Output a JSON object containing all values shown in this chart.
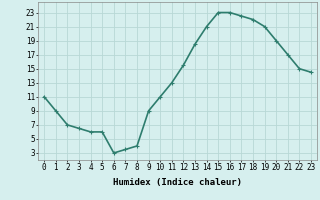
{
  "x": [
    0,
    1,
    2,
    3,
    4,
    5,
    6,
    7,
    8,
    9,
    10,
    11,
    12,
    13,
    14,
    15,
    16,
    17,
    18,
    19,
    20,
    21,
    22,
    23
  ],
  "y": [
    11,
    9,
    7,
    6.5,
    6,
    6,
    3,
    3.5,
    4,
    9,
    11,
    13,
    15.5,
    18.5,
    21,
    23,
    23,
    22.5,
    22,
    21,
    19,
    17,
    15,
    14.5
  ],
  "line_color": "#2e7d6e",
  "marker": "+",
  "marker_size": 3,
  "bg_color": "#d6efee",
  "grid_color": "#b8d8d6",
  "xlabel": "Humidex (Indice chaleur)",
  "xlabel_fontsize": 6.5,
  "xticks": [
    0,
    1,
    2,
    3,
    4,
    5,
    6,
    7,
    8,
    9,
    10,
    11,
    12,
    13,
    14,
    15,
    16,
    17,
    18,
    19,
    20,
    21,
    22,
    23
  ],
  "yticks": [
    3,
    5,
    7,
    9,
    11,
    13,
    15,
    17,
    19,
    21,
    23
  ],
  "xlim": [
    -0.5,
    23.5
  ],
  "ylim": [
    2,
    24.5
  ],
  "tick_fontsize": 5.5,
  "linewidth": 1.2
}
